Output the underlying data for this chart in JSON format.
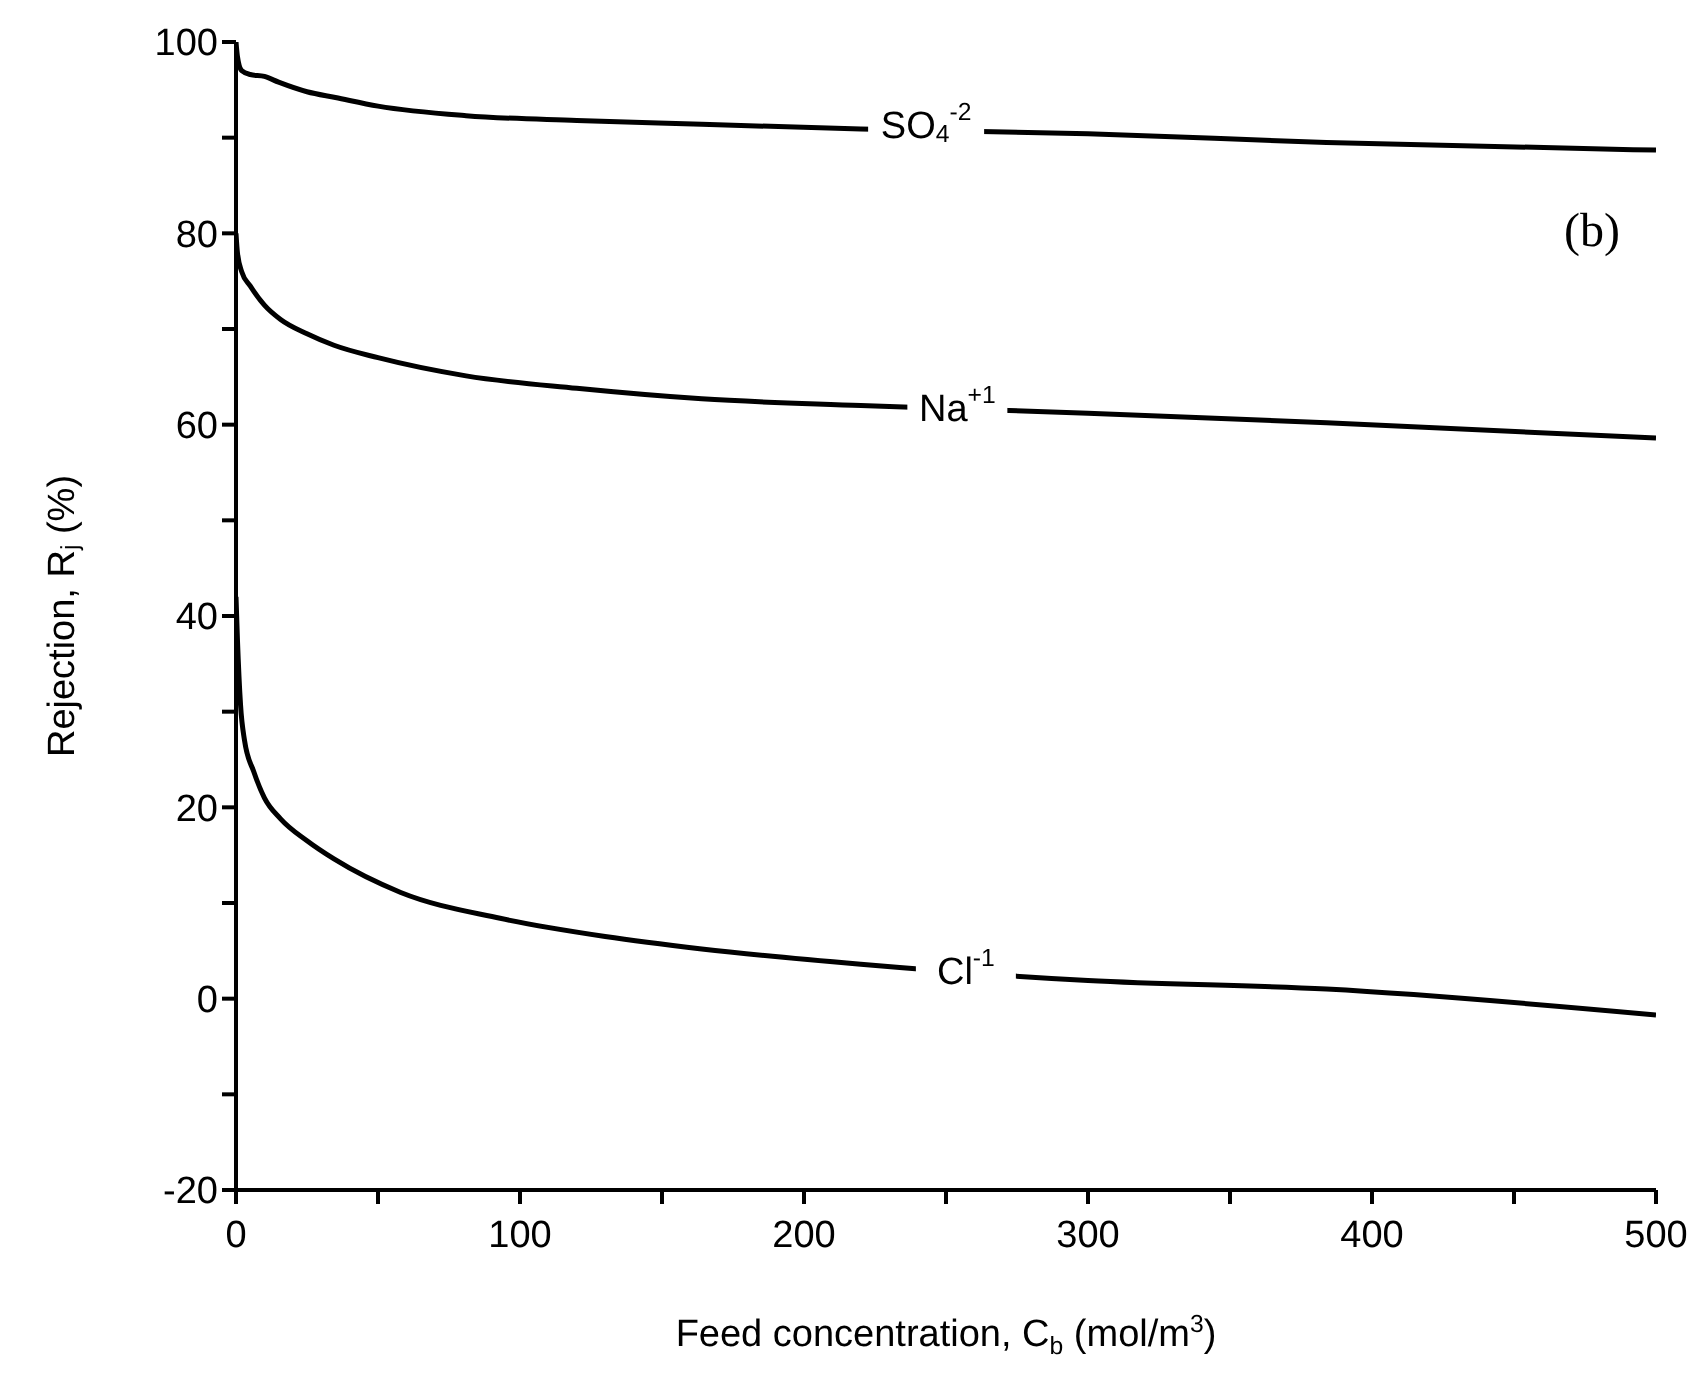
{
  "chart_data": {
    "type": "line",
    "xlabel": "Feed concentration, C$_{b}$ (mol/m$^{3}$)",
    "ylabel": "Rejection, R$_{j}$ (%)",
    "xlim": [
      0,
      500
    ],
    "xticks": [
      0,
      {
        "value": 50,
        "label": null
      },
      100,
      {
        "value": 150,
        "label": null
      },
      200,
      {
        "value": 250,
        "label": null
      },
      300,
      {
        "value": 350,
        "label": null
      },
      400,
      {
        "value": 450,
        "label": null
      },
      500
    ],
    "ylim": [
      -20,
      100
    ],
    "yticks": [
      -20,
      {
        "value": -10,
        "label": null
      },
      0,
      {
        "value": 10,
        "label": null
      },
      20,
      {
        "value": 30,
        "label": null
      },
      40,
      {
        "value": 50,
        "label": null
      },
      60,
      {
        "value": 70,
        "label": null
      },
      80,
      {
        "value": 90,
        "label": null
      },
      100
    ],
    "grid": false,
    "marker": "none",
    "line_style": "solid",
    "series": [
      {
        "color": "#000000",
        "x": [
          0,
          0.5,
          2,
          5,
          10,
          15,
          25,
          35,
          50,
          81,
          120,
          164,
          220,
          300,
          384,
          500
        ],
        "values": [
          100,
          98.5,
          97,
          96.6,
          96.4,
          95.8,
          94.8,
          94.2,
          93.3,
          92.3,
          91.8,
          91.4,
          90.9,
          90.4,
          89.5,
          88.7
        ]
      },
      {
        "color": "#000000",
        "x": [
          0,
          0.5,
          2,
          5,
          10,
          15.7,
          25,
          34.5,
          50,
          81,
          120,
          164,
          220,
          300,
          384,
          500
        ],
        "values": [
          80,
          78,
          76,
          74.5,
          72.5,
          71,
          69.5,
          68.3,
          67,
          65.1,
          63.8,
          62.7,
          62,
          61.2,
          60.2,
          58.6
        ]
      },
      {
        "color": "#000000",
        "x": [
          0,
          0.5,
          1.6,
          3,
          6.3,
          10,
          15.7,
          25,
          34.5,
          58,
          93,
          130,
          164,
          220,
          300,
          384,
          500
        ],
        "values": [
          42,
          37.6,
          30.7,
          27,
          23.7,
          21,
          18.8,
          16.5,
          14.6,
          11.1,
          8.4,
          6.5,
          5.2,
          3.6,
          1.9,
          1.0,
          -1.7
        ]
      }
    ],
    "annotations": [
      {
        "text": "SO$_{4}$$^{-2}$",
        "x": 243,
        "y": 91.2
      },
      {
        "text": "Na$^{+1}$",
        "x": 254,
        "y": 61.6
      },
      {
        "text": "Cl$^{-1}$",
        "x": 257,
        "y": 2.8
      },
      "(b)"
    ]
  }
}
